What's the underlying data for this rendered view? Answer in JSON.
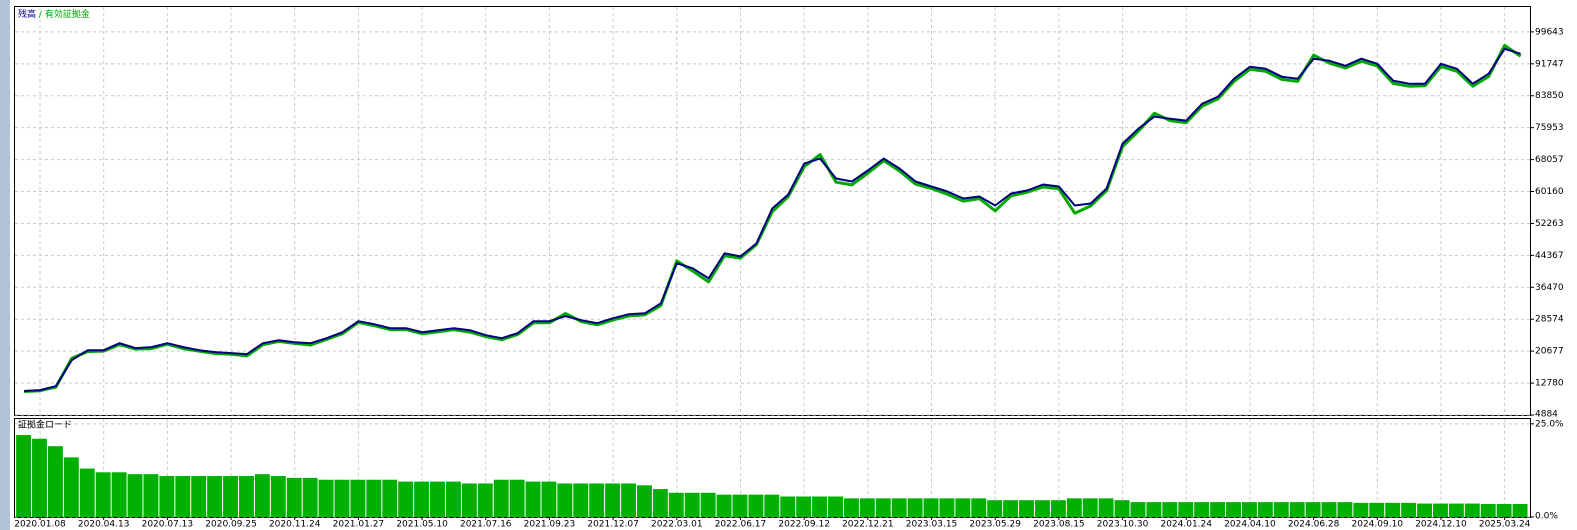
{
  "chart_data": [
    {
      "type": "line",
      "legend_separator": "/",
      "categories": [
        null,
        "2020.01.08",
        null,
        null,
        null,
        "2020.04.13",
        null,
        null,
        null,
        "2020.07.13",
        null,
        null,
        null,
        "2020.09.25",
        null,
        null,
        null,
        "2020.11.24",
        null,
        null,
        null,
        "2021.01.27",
        null,
        null,
        null,
        "2021.05.10",
        null,
        null,
        null,
        "2021.07.16",
        null,
        null,
        null,
        "2021.09.23",
        null,
        null,
        null,
        "2021.12.07",
        null,
        null,
        null,
        "2022.03.01",
        null,
        null,
        null,
        "2022.06.17",
        null,
        null,
        null,
        "2022.09.12",
        null,
        null,
        null,
        "2022.12.21",
        null,
        null,
        null,
        "2023.03.15",
        null,
        null,
        null,
        "2023.05.29",
        null,
        null,
        null,
        "2023.08.15",
        null,
        null,
        null,
        "2023.10.30",
        null,
        null,
        null,
        "2024.01.24",
        null,
        null,
        null,
        "2024.04.10",
        null,
        null,
        null,
        "2024.06.28",
        null,
        null,
        null,
        "2024.09.10",
        null,
        null,
        null,
        "2024.12.10",
        null,
        null,
        null,
        "2025.03.24",
        null
      ],
      "series": [
        {
          "name": "残高",
          "color": "#000080",
          "values": [
            10808,
            11050,
            12040,
            18460,
            20920,
            20920,
            22650,
            21420,
            21670,
            22650,
            21670,
            20920,
            20430,
            20190,
            19940,
            22650,
            23390,
            22900,
            22650,
            23890,
            25370,
            28080,
            27340,
            26350,
            26350,
            25370,
            25860,
            26350,
            25860,
            24630,
            23890,
            25120,
            28080,
            28080,
            29320,
            28330,
            27590,
            28820,
            29810,
            30060,
            32520,
            42400,
            41160,
            38700,
            44870,
            44120,
            47330,
            55970,
            59430,
            67070,
            68310,
            63370,
            62630,
            65350,
            68310,
            65840,
            62630,
            61400,
            60160,
            58430,
            58930,
            56710,
            59680,
            60420,
            61900,
            61400,
            56710,
            57200,
            60910,
            72010,
            75720,
            78680,
            78180,
            77690,
            81880,
            83610,
            88050,
            91010,
            90520,
            88550,
            88050,
            93000,
            92500,
            91260,
            93000,
            91760,
            87560,
            86820,
            86820,
            91760,
            90520,
            86820,
            89290,
            95460,
            94230
          ]
        },
        {
          "name": "有効証拠金",
          "color": "#00a800",
          "values": [
            10700,
            10900,
            11800,
            18900,
            20600,
            20700,
            22300,
            21200,
            21300,
            22400,
            21300,
            20700,
            20100,
            19900,
            19500,
            22300,
            23100,
            22600,
            22200,
            23600,
            25000,
            27800,
            27000,
            26000,
            26000,
            25000,
            25500,
            26000,
            25400,
            24300,
            23500,
            24800,
            27700,
            27700,
            30000,
            28000,
            27200,
            28400,
            29400,
            29700,
            32000,
            43000,
            40500,
            37800,
            44300,
            43700,
            47000,
            55200,
            58900,
            66300,
            69300,
            62500,
            61800,
            64700,
            67800,
            65200,
            62000,
            60900,
            59500,
            57800,
            58400,
            55400,
            59100,
            60000,
            61300,
            60800,
            54800,
            56600,
            60400,
            71300,
            75100,
            79500,
            77700,
            77200,
            81300,
            83100,
            87400,
            90400,
            89900,
            87900,
            87400,
            93900,
            91900,
            90700,
            92400,
            91200,
            86900,
            86200,
            86300,
            91100,
            89900,
            86200,
            88600,
            96300,
            93600
          ]
        }
      ],
      "ylim": [
        4884,
        105800
      ],
      "yticks": [
        4884,
        12780,
        20677,
        28574,
        36470,
        44367,
        52263,
        60160,
        68057,
        75953,
        83850,
        91747,
        99643
      ],
      "grid": true
    },
    {
      "type": "bar",
      "title": "証拠金ロード",
      "color": "#00b000",
      "values": [
        22,
        21,
        19,
        16,
        13,
        12,
        12,
        11.5,
        11.5,
        11,
        11,
        11,
        11,
        11,
        11,
        11.5,
        11,
        10.5,
        10.5,
        10,
        10,
        10,
        10,
        10,
        9.5,
        9.5,
        9.5,
        9.5,
        9,
        9,
        10,
        10,
        9.5,
        9.5,
        9,
        9,
        9,
        9,
        9,
        8.5,
        7.5,
        6.5,
        6.5,
        6.5,
        6,
        6,
        6,
        6,
        5.5,
        5.5,
        5.5,
        5.5,
        5,
        5,
        5,
        5,
        5,
        5,
        5,
        5,
        5,
        4.5,
        4.5,
        4.5,
        4.5,
        4.5,
        5,
        5,
        5,
        4.5,
        4,
        4,
        4,
        4,
        4,
        4,
        4,
        4,
        4,
        4,
        4,
        4,
        4,
        4,
        3.8,
        3.8,
        3.8,
        3.8,
        3.6,
        3.6,
        3.6,
        3.6,
        3.5,
        3.5,
        3.5
      ],
      "ylim": [
        0,
        26.3
      ],
      "yticks": [
        {
          "value": 0,
          "label": "0.0%"
        },
        {
          "value": 25,
          "label": "25.0%"
        }
      ],
      "grid": true
    }
  ]
}
